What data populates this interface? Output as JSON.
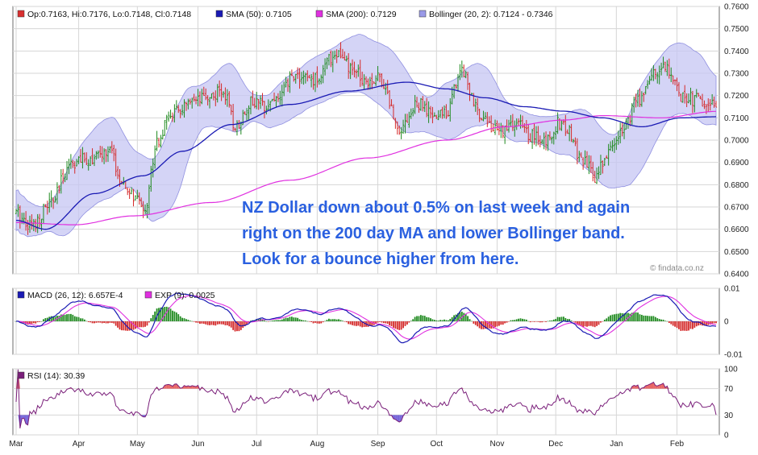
{
  "chart_data": [
    {
      "type": "candlestick",
      "legend": [
        {
          "name": "swatch-ohlc",
          "text": "Op:0.7163, Hi:0.7176, Lo:0.7148, Cl:0.7148",
          "color": "#d93030"
        },
        {
          "name": "swatch-sma50",
          "text": "SMA (50): 0.7105",
          "color": "#1a1ab4"
        },
        {
          "name": "swatch-sma200",
          "text": "SMA (200): 0.7129",
          "color": "#e030e0"
        },
        {
          "name": "swatch-bollinger",
          "text": "Bollinger (20, 2): 0.7124 - 0.7346",
          "color": "#9a9ae8"
        }
      ],
      "ylim": [
        0.64,
        0.76
      ],
      "yticks": [
        "0.6400",
        "0.6500",
        "0.6600",
        "0.6700",
        "0.6800",
        "0.6900",
        "0.7000",
        "0.7100",
        "0.7200",
        "0.7300",
        "0.7400",
        "0.7500",
        "0.7600"
      ],
      "annotation": [
        "NZ Dollar down about 0.5% on last week and again",
        "right on the 200 day MA and lower Bollinger band.",
        "Look for a bounce higher from here."
      ],
      "watermark": "© findata.co.nz",
      "close_anchors": [
        [
          0,
          0.667
        ],
        [
          8,
          0.662
        ],
        [
          18,
          0.672
        ],
        [
          28,
          0.69
        ],
        [
          40,
          0.692
        ],
        [
          48,
          0.695
        ],
        [
          55,
          0.678
        ],
        [
          66,
          0.67
        ],
        [
          72,
          0.7
        ],
        [
          80,
          0.712
        ],
        [
          90,
          0.716
        ],
        [
          100,
          0.72
        ],
        [
          106,
          0.722
        ],
        [
          112,
          0.706
        ],
        [
          120,
          0.717
        ],
        [
          126,
          0.716
        ],
        [
          134,
          0.719
        ],
        [
          142,
          0.729
        ],
        [
          152,
          0.727
        ],
        [
          164,
          0.739
        ],
        [
          172,
          0.731
        ],
        [
          180,
          0.727
        ],
        [
          186,
          0.728
        ],
        [
          196,
          0.706
        ],
        [
          206,
          0.716
        ],
        [
          214,
          0.71
        ],
        [
          220,
          0.713
        ],
        [
          228,
          0.732
        ],
        [
          236,
          0.713
        ],
        [
          246,
          0.704
        ],
        [
          256,
          0.707
        ],
        [
          264,
          0.702
        ],
        [
          270,
          0.699
        ],
        [
          278,
          0.708
        ],
        [
          282,
          0.704
        ],
        [
          290,
          0.69
        ],
        [
          296,
          0.684
        ],
        [
          304,
          0.696
        ],
        [
          312,
          0.708
        ],
        [
          318,
          0.718
        ],
        [
          326,
          0.73
        ],
        [
          332,
          0.734
        ],
        [
          340,
          0.72
        ],
        [
          348,
          0.718
        ],
        [
          355,
          0.715
        ],
        [
          358,
          0.7148
        ]
      ],
      "sma50_anchors": [
        [
          0,
          0.664
        ],
        [
          15,
          0.66
        ],
        [
          40,
          0.676
        ],
        [
          65,
          0.684
        ],
        [
          85,
          0.695
        ],
        [
          110,
          0.707
        ],
        [
          140,
          0.716
        ],
        [
          170,
          0.722
        ],
        [
          200,
          0.726
        ],
        [
          220,
          0.723
        ],
        [
          240,
          0.719
        ],
        [
          260,
          0.715
        ],
        [
          280,
          0.713
        ],
        [
          300,
          0.71
        ],
        [
          320,
          0.706
        ],
        [
          340,
          0.71
        ],
        [
          358,
          0.7105
        ]
      ],
      "sma200_anchors": [
        [
          0,
          0.663
        ],
        [
          30,
          0.662
        ],
        [
          60,
          0.666
        ],
        [
          100,
          0.672
        ],
        [
          140,
          0.682
        ],
        [
          180,
          0.692
        ],
        [
          220,
          0.7
        ],
        [
          250,
          0.706
        ],
        [
          280,
          0.709
        ],
        [
          300,
          0.711
        ],
        [
          330,
          0.71
        ],
        [
          358,
          0.7129
        ]
      ],
      "boll_width_anchors": [
        [
          0,
          0.009
        ],
        [
          15,
          0.006
        ],
        [
          30,
          0.016
        ],
        [
          48,
          0.018
        ],
        [
          60,
          0.009
        ],
        [
          70,
          0.014
        ],
        [
          82,
          0.02
        ],
        [
          96,
          0.01
        ],
        [
          110,
          0.015
        ],
        [
          122,
          0.006
        ],
        [
          140,
          0.01
        ],
        [
          160,
          0.011
        ],
        [
          178,
          0.013
        ],
        [
          196,
          0.015
        ],
        [
          210,
          0.008
        ],
        [
          222,
          0.013
        ],
        [
          236,
          0.014
        ],
        [
          250,
          0.008
        ],
        [
          266,
          0.006
        ],
        [
          280,
          0.009
        ],
        [
          292,
          0.013
        ],
        [
          306,
          0.012
        ],
        [
          320,
          0.019
        ],
        [
          336,
          0.016
        ],
        [
          350,
          0.015
        ],
        [
          358,
          0.011
        ]
      ],
      "seed": 17
    },
    {
      "type": "line-histogram",
      "legend": [
        {
          "name": "swatch-macd",
          "text": "MACD (26, 12): 6.657E-4",
          "color": "#1a1ab4"
        },
        {
          "name": "swatch-exp9",
          "text": "EXP (9): 0.0025",
          "color": "#e030e0"
        }
      ],
      "ylim": [
        -0.01,
        0.01
      ],
      "yticks": [
        "-0.01",
        "0",
        "0.01"
      ]
    },
    {
      "type": "line",
      "legend": [
        {
          "name": "swatch-rsi",
          "text": "RSI (14): 30.39",
          "color": "#7a1f7a"
        }
      ],
      "ylim": [
        0,
        100
      ],
      "yticks": [
        "0",
        "30",
        "70",
        "100"
      ],
      "levels": [
        30,
        70
      ]
    }
  ],
  "xaxis": {
    "months": [
      "Mar",
      "Apr",
      "May",
      "Jun",
      "Jul",
      "Aug",
      "Sep",
      "Oct",
      "Nov",
      "Dec",
      "Jan",
      "Feb"
    ],
    "month_starts": [
      0,
      32,
      62,
      93,
      123,
      154,
      185,
      215,
      246,
      276,
      307,
      338
    ],
    "days": 359
  },
  "colors": {
    "up": "#1f8a1f",
    "down": "#d42a2a",
    "sma50": "#1a1ab4",
    "sma200": "#e030e0",
    "band_fill": "#c5c5f3",
    "band_edge": "#8f8fe0",
    "macd": "#1a1ab4",
    "signal": "#e030e0",
    "hist_pos": "#1f8a1f",
    "hist_neg": "#d42a2a",
    "rsi": "#7a1f7a",
    "rsi_over": "#e24040",
    "rsi_under": "#5540d0"
  }
}
